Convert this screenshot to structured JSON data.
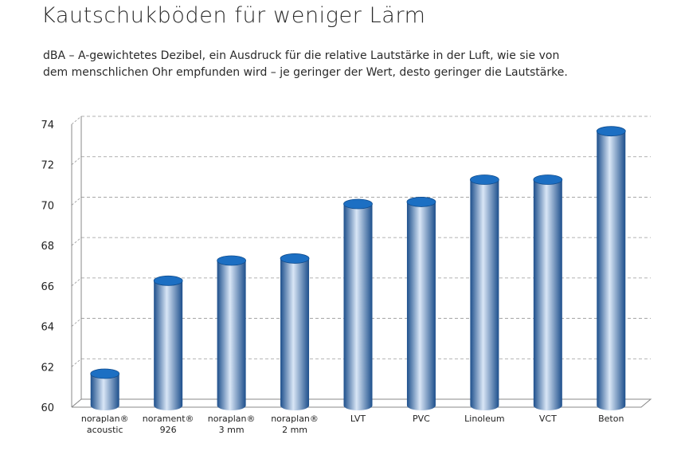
{
  "title": "Kautschukböden für weniger Lärm",
  "subtitle_lines": [
    "dBA – A-gewichtetes Dezibel, ein Ausdruck für die relative Lautstärke in der Luft, wie sie von",
    "dem menschlichen Ohr empfunden wird – je geringer der Wert, desto geringer die Lautstärke."
  ],
  "colors": {
    "bar_dark": "#1d4f8c",
    "bar_mid": "#6a93cc",
    "bar_light": "#d9e6f6",
    "bar_top": "#1c6fc3",
    "grid": "#999999",
    "axis": "#888888"
  },
  "chart_data": {
    "type": "bar",
    "style": "3d-cylinder",
    "categories": [
      [
        "noraplan®",
        "acoustic"
      ],
      [
        "norament®",
        "926"
      ],
      [
        "noraplan®",
        "3 mm"
      ],
      [
        "noraplan®",
        "2 mm"
      ],
      [
        "LVT"
      ],
      [
        "PVC"
      ],
      [
        "Linoleum"
      ],
      [
        "VCT"
      ],
      [
        "Beton"
      ]
    ],
    "values": [
      61.5,
      66.1,
      67.1,
      67.2,
      69.9,
      70.0,
      71.1,
      71.1,
      73.5
    ],
    "ylim": [
      60,
      74
    ],
    "yticks": [
      60,
      62,
      64,
      66,
      68,
      70,
      72,
      74
    ],
    "grid": true,
    "xlabel": "",
    "ylabel": ""
  }
}
